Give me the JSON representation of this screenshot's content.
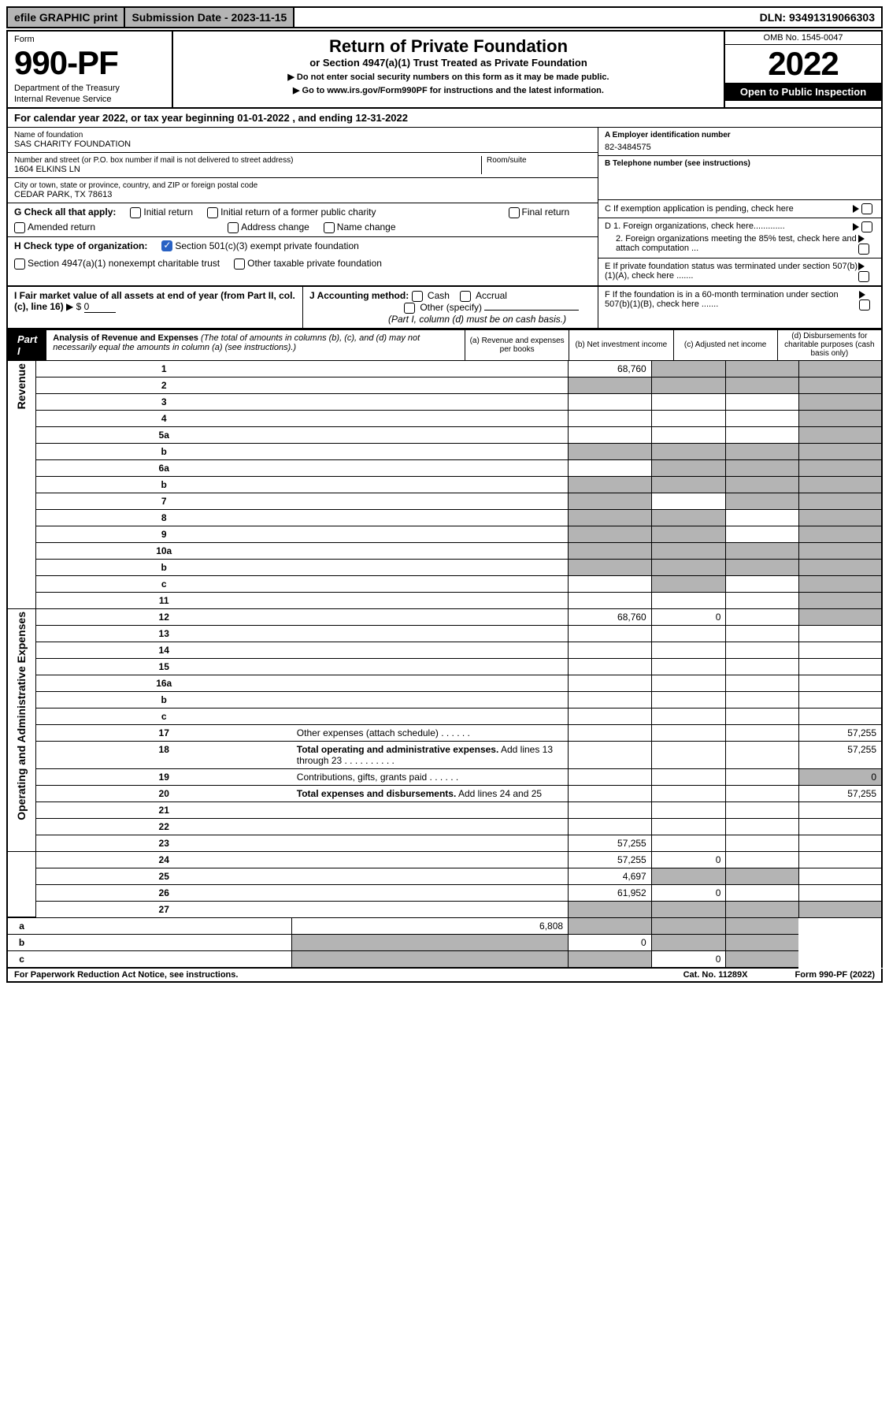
{
  "top": {
    "efile": "efile GRAPHIC print",
    "submission": "Submission Date - 2023-11-15",
    "dln": "DLN: 93491319066303"
  },
  "header": {
    "form_label": "Form",
    "form_num": "990-PF",
    "dept": "Department of the Treasury",
    "irs": "Internal Revenue Service",
    "title": "Return of Private Foundation",
    "subtitle": "or Section 4947(a)(1) Trust Treated as Private Foundation",
    "note1": "▶ Do not enter social security numbers on this form as it may be made public.",
    "note2": "▶ Go to www.irs.gov/Form990PF for instructions and the latest information.",
    "omb": "OMB No. 1545-0047",
    "year": "2022",
    "open": "Open to Public Inspection"
  },
  "calyear": "For calendar year 2022, or tax year beginning 01-01-2022                  , and ending 12-31-2022",
  "info": {
    "name_label": "Name of foundation",
    "name": "SAS CHARITY FOUNDATION",
    "addr_label": "Number and street (or P.O. box number if mail is not delivered to street address)",
    "addr": "1604 ELKINS LN",
    "room_label": "Room/suite",
    "city_label": "City or town, state or province, country, and ZIP or foreign postal code",
    "city": "CEDAR PARK, TX  78613",
    "ein_label": "A Employer identification number",
    "ein": "82-3484575",
    "tel_label": "B Telephone number (see instructions)",
    "c_label": "C If exemption application is pending, check here",
    "d1": "D 1. Foreign organizations, check here.............",
    "d2": "2. Foreign organizations meeting the 85% test, check here and attach computation ...",
    "e_label": "E  If private foundation status was terminated under section 507(b)(1)(A), check here .......",
    "f_label": "F  If the foundation is in a 60-month termination under section 507(b)(1)(B), check here ......."
  },
  "g": {
    "label": "G Check all that apply:",
    "opts": [
      "Initial return",
      "Initial return of a former public charity",
      "Final return",
      "Amended return",
      "Address change",
      "Name change"
    ]
  },
  "h": {
    "label": "H Check type of organization:",
    "opt1": "Section 501(c)(3) exempt private foundation",
    "opt2": "Section 4947(a)(1) nonexempt charitable trust",
    "opt3": "Other taxable private foundation"
  },
  "i": {
    "label": "I Fair market value of all assets at end of year (from Part II, col. (c), line 16)",
    "val": "0"
  },
  "j": {
    "label": "J Accounting method:",
    "cash": "Cash",
    "accrual": "Accrual",
    "other": "Other (specify)",
    "note": "(Part I, column (d) must be on cash basis.)"
  },
  "part1": {
    "badge": "Part I",
    "title": "Analysis of Revenue and Expenses",
    "note": "(The total of amounts in columns (b), (c), and (d) may not necessarily equal the amounts in column (a) (see instructions).)",
    "cols": {
      "a": "(a)    Revenue and expenses per books",
      "b": "(b)    Net investment income",
      "c": "(c)    Adjusted net income",
      "d": "(d)    Disbursements for charitable purposes (cash basis only)"
    }
  },
  "sides": {
    "rev": "Revenue",
    "exp": "Operating and Administrative Expenses"
  },
  "rows": [
    {
      "n": "1",
      "d": "",
      "a": "68,760",
      "b": "",
      "c": "",
      "sb": "s",
      "sc": "s",
      "sd": "s"
    },
    {
      "n": "2",
      "d": "",
      "a": "",
      "b": "",
      "c": "",
      "sa": "s",
      "sb": "s",
      "sc": "s",
      "sd": "s",
      "ab": "none"
    },
    {
      "n": "3",
      "d": "",
      "a": "",
      "b": "",
      "c": "",
      "sd": "s"
    },
    {
      "n": "4",
      "d": "",
      "a": "",
      "b": "",
      "c": "",
      "sd": "s"
    },
    {
      "n": "5a",
      "d": "",
      "a": "",
      "b": "",
      "c": "",
      "sd": "s"
    },
    {
      "n": "b",
      "d": "",
      "a": "",
      "b": "",
      "c": "",
      "sa": "s",
      "sb": "s",
      "sc": "s",
      "sd": "s"
    },
    {
      "n": "6a",
      "d": "",
      "a": "",
      "b": "",
      "c": "",
      "sb": "s",
      "sc": "s",
      "sd": "s"
    },
    {
      "n": "b",
      "d": "",
      "a": "",
      "b": "",
      "c": "",
      "sa": "s",
      "sb": "s",
      "sc": "s",
      "sd": "s"
    },
    {
      "n": "7",
      "d": "",
      "a": "",
      "b": "",
      "c": "",
      "sa": "s",
      "sc": "s",
      "sd": "s"
    },
    {
      "n": "8",
      "d": "",
      "a": "",
      "b": "",
      "c": "",
      "sa": "s",
      "sb": "s",
      "sd": "s"
    },
    {
      "n": "9",
      "d": "",
      "a": "",
      "b": "",
      "c": "",
      "sa": "s",
      "sb": "s",
      "sd": "s"
    },
    {
      "n": "10a",
      "d": "",
      "a": "",
      "b": "",
      "c": "",
      "sa": "s",
      "sb": "s",
      "sc": "s",
      "sd": "s",
      "ab": "none"
    },
    {
      "n": "b",
      "d": "",
      "a": "",
      "b": "",
      "c": "",
      "sa": "s",
      "sb": "s",
      "sc": "s",
      "sd": "s"
    },
    {
      "n": "c",
      "d": "",
      "a": "",
      "b": "",
      "c": "",
      "sb": "s",
      "sd": "s"
    },
    {
      "n": "11",
      "d": "",
      "a": "",
      "b": "",
      "c": "",
      "sd": "s"
    },
    {
      "n": "12",
      "d": "",
      "a": "68,760",
      "b": "0",
      "c": "",
      "bold": true,
      "sd": "s"
    },
    {
      "n": "13",
      "d": "",
      "a": "",
      "b": "",
      "c": ""
    },
    {
      "n": "14",
      "d": "",
      "a": "",
      "b": "",
      "c": ""
    },
    {
      "n": "15",
      "d": "",
      "a": "",
      "b": "",
      "c": ""
    },
    {
      "n": "16a",
      "d": "",
      "a": "",
      "b": "",
      "c": ""
    },
    {
      "n": "b",
      "d": "",
      "a": "",
      "b": "",
      "c": ""
    },
    {
      "n": "c",
      "d": "",
      "a": "",
      "b": "",
      "c": ""
    },
    {
      "n": "17",
      "d": "",
      "a": "",
      "b": "",
      "c": ""
    },
    {
      "n": "18",
      "d": "",
      "a": "",
      "b": "",
      "c": ""
    },
    {
      "n": "19",
      "d": "",
      "a": "",
      "b": "",
      "c": "",
      "sd": "s"
    },
    {
      "n": "20",
      "d": "",
      "a": "",
      "b": "",
      "c": ""
    },
    {
      "n": "21",
      "d": "",
      "a": "",
      "b": "",
      "c": ""
    },
    {
      "n": "22",
      "d": "",
      "a": "",
      "b": "",
      "c": ""
    },
    {
      "n": "23",
      "d": "57,255",
      "a": "57,255",
      "b": "",
      "c": ""
    },
    {
      "n": "24",
      "d": "57,255",
      "a": "57,255",
      "b": "0",
      "c": "",
      "bold": true
    },
    {
      "n": "25",
      "d": "0",
      "a": "4,697",
      "b": "",
      "c": "",
      "sb": "s",
      "sc": "s"
    },
    {
      "n": "26",
      "d": "57,255",
      "a": "61,952",
      "b": "0",
      "c": "",
      "bold": true
    },
    {
      "n": "27",
      "d": "",
      "a": "",
      "b": "",
      "c": "",
      "sa": "s",
      "sb": "s",
      "sc": "s",
      "sd": "s"
    },
    {
      "n": "a",
      "d": "",
      "a": "6,808",
      "b": "",
      "c": "",
      "bold": true,
      "sb": "s",
      "sc": "s",
      "sd": "s"
    },
    {
      "n": "b",
      "d": "",
      "a": "",
      "b": "0",
      "c": "",
      "bold": true,
      "sa": "s",
      "sc": "s",
      "sd": "s"
    },
    {
      "n": "c",
      "d": "",
      "a": "",
      "b": "",
      "c": "0",
      "bold": true,
      "sa": "s",
      "sb": "s",
      "sd": "s",
      "bb": "thick"
    }
  ],
  "footer": {
    "pra": "For Paperwork Reduction Act Notice, see instructions.",
    "cat": "Cat. No. 11289X",
    "form": "Form 990-PF (2022)"
  }
}
